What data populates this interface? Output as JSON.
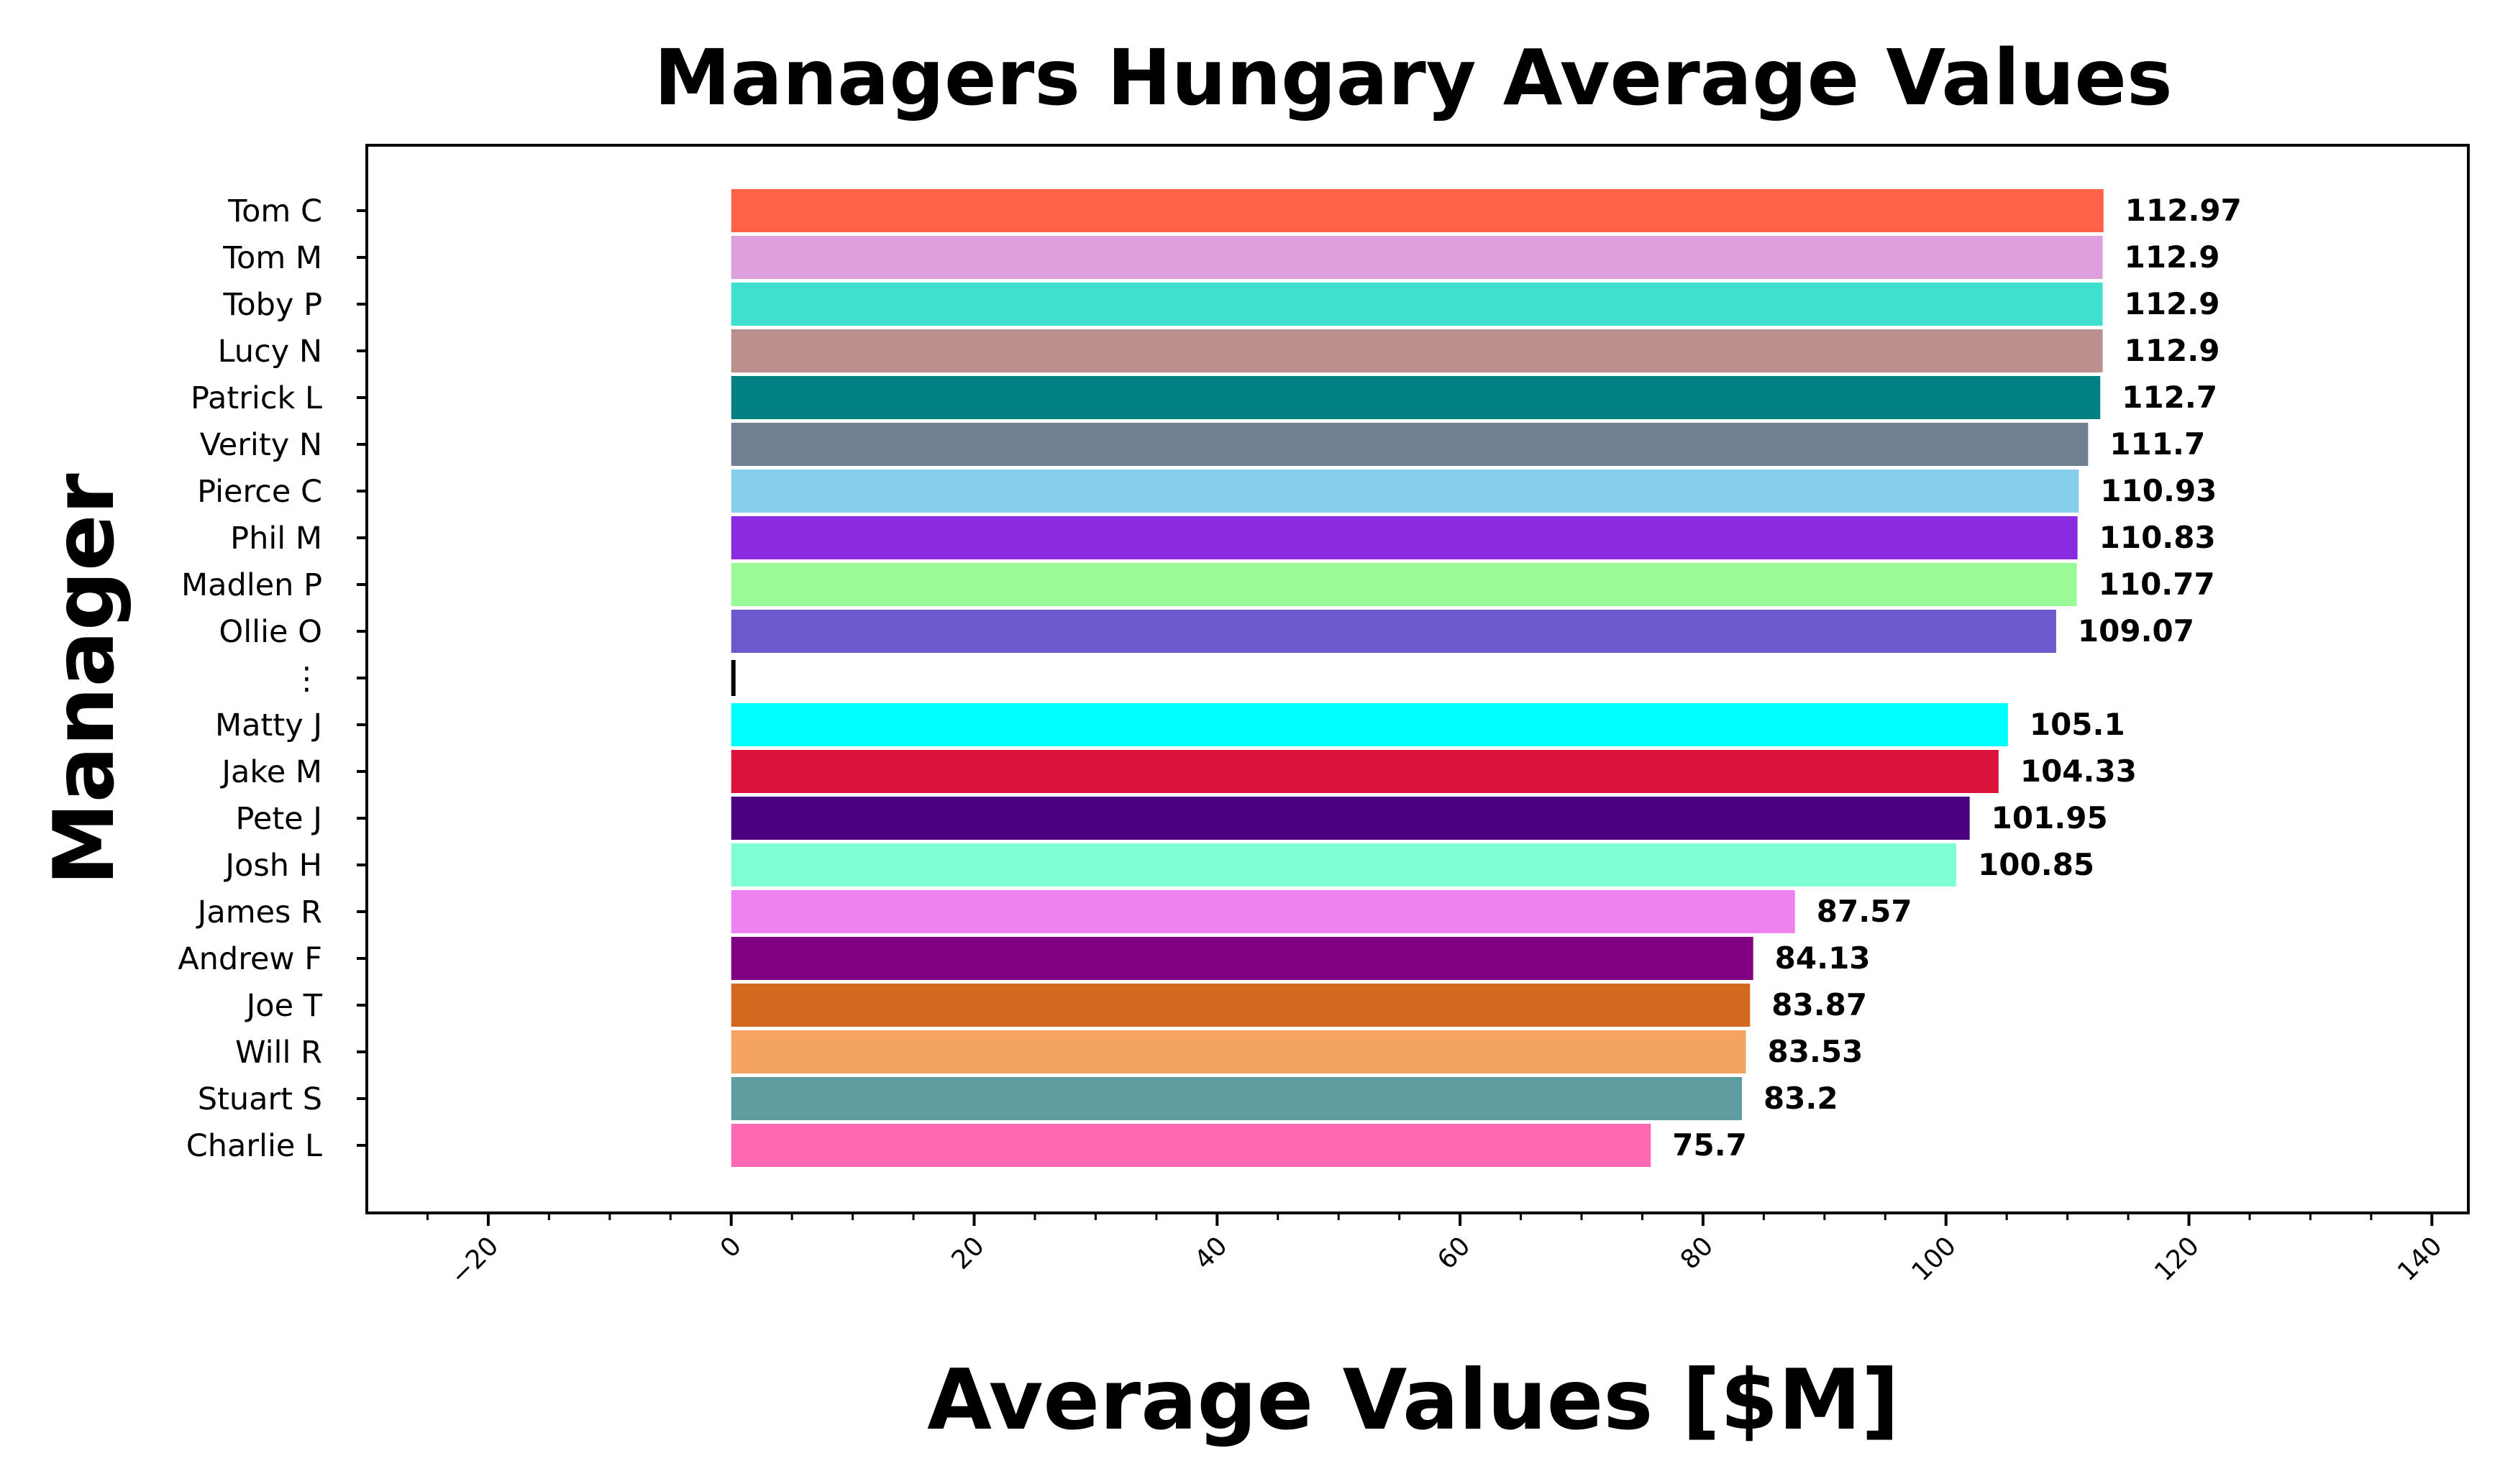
{
  "chart_data": {
    "type": "bar",
    "orientation": "horizontal",
    "title": "Managers Hungary Average Values",
    "xlabel": "Average Values [$M]",
    "ylabel": "Manager",
    "xlim": [
      -30,
      143
    ],
    "xticks": [
      -20,
      0,
      20,
      40,
      60,
      80,
      100,
      120,
      140
    ],
    "xtick_labels": [
      "−20",
      "0",
      "20",
      "40",
      "60",
      "80",
      "100",
      "120",
      "140"
    ],
    "grid": false,
    "legend": "none",
    "bars": [
      {
        "label": "Tom C",
        "value": 112.97,
        "value_label": "112.97",
        "color": "#FF6347"
      },
      {
        "label": "Tom M",
        "value": 112.9,
        "value_label": "112.9",
        "color": "#DDA0DD"
      },
      {
        "label": "Toby P",
        "value": 112.9,
        "value_label": "112.9",
        "color": "#40E0D0"
      },
      {
        "label": "Lucy N",
        "value": 112.9,
        "value_label": "112.9",
        "color": "#BC8F8F"
      },
      {
        "label": "Patrick L",
        "value": 112.7,
        "value_label": "112.7",
        "color": "#008080"
      },
      {
        "label": "Verity N",
        "value": 111.7,
        "value_label": "111.7",
        "color": "#708090"
      },
      {
        "label": "Pierce C",
        "value": 110.93,
        "value_label": "110.93",
        "color": "#87CEEB"
      },
      {
        "label": "Phil M",
        "value": 110.83,
        "value_label": "110.83",
        "color": "#8A2BE2"
      },
      {
        "label": "Madlen P",
        "value": 110.77,
        "value_label": "110.77",
        "color": "#98FB98"
      },
      {
        "label": "Ollie O",
        "value": 109.07,
        "value_label": "109.07",
        "color": "#6A5ACD"
      },
      {
        "label": "⋮",
        "value": 0.3,
        "value_label": "",
        "color": "#000000"
      },
      {
        "label": "Matty J",
        "value": 105.1,
        "value_label": "105.1",
        "color": "#00FFFF"
      },
      {
        "label": "Jake M",
        "value": 104.33,
        "value_label": "104.33",
        "color": "#DC143C"
      },
      {
        "label": "Pete J",
        "value": 101.95,
        "value_label": "101.95",
        "color": "#4B0082"
      },
      {
        "label": "Josh H",
        "value": 100.85,
        "value_label": "100.85",
        "color": "#7FFFD4"
      },
      {
        "label": "James R",
        "value": 87.57,
        "value_label": "87.57",
        "color": "#EE82EE"
      },
      {
        "label": "Andrew F",
        "value": 84.13,
        "value_label": "84.13",
        "color": "#800080"
      },
      {
        "label": "Joe T",
        "value": 83.87,
        "value_label": "83.87",
        "color": "#D2691E"
      },
      {
        "label": "Will R",
        "value": 83.53,
        "value_label": "83.53",
        "color": "#F4A460"
      },
      {
        "label": "Stuart S",
        "value": 83.2,
        "value_label": "83.2",
        "color": "#5F9EA0"
      },
      {
        "label": "Charlie L",
        "value": 75.7,
        "value_label": "75.7",
        "color": "#FF69B4"
      }
    ]
  }
}
